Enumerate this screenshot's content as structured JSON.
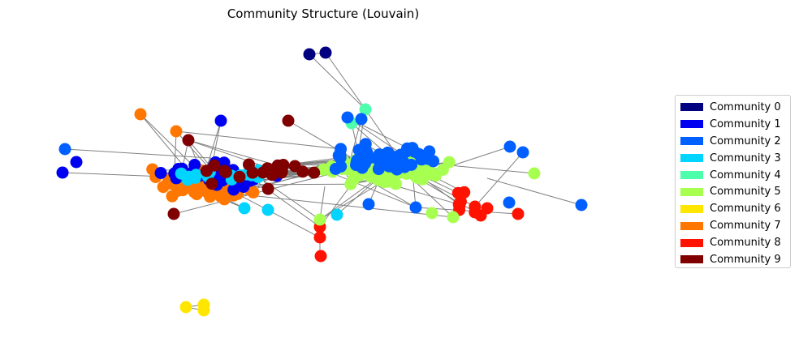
{
  "title": "Community Structure (Louvain)",
  "legend": [
    {
      "label": "Community 0",
      "color": "#000080"
    },
    {
      "label": "Community 1",
      "color": "#0000f1"
    },
    {
      "label": "Community 2",
      "color": "#0060ff"
    },
    {
      "label": "Community 3",
      "color": "#00d4ff"
    },
    {
      "label": "Community 4",
      "color": "#4dffaa"
    },
    {
      "label": "Community 5",
      "color": "#a7ff50"
    },
    {
      "label": "Community 6",
      "color": "#ffe600"
    },
    {
      "label": "Community 7",
      "color": "#ff7700"
    },
    {
      "label": "Community 8",
      "color": "#ff1300"
    },
    {
      "label": "Community 9",
      "color": "#800000"
    }
  ]
}
